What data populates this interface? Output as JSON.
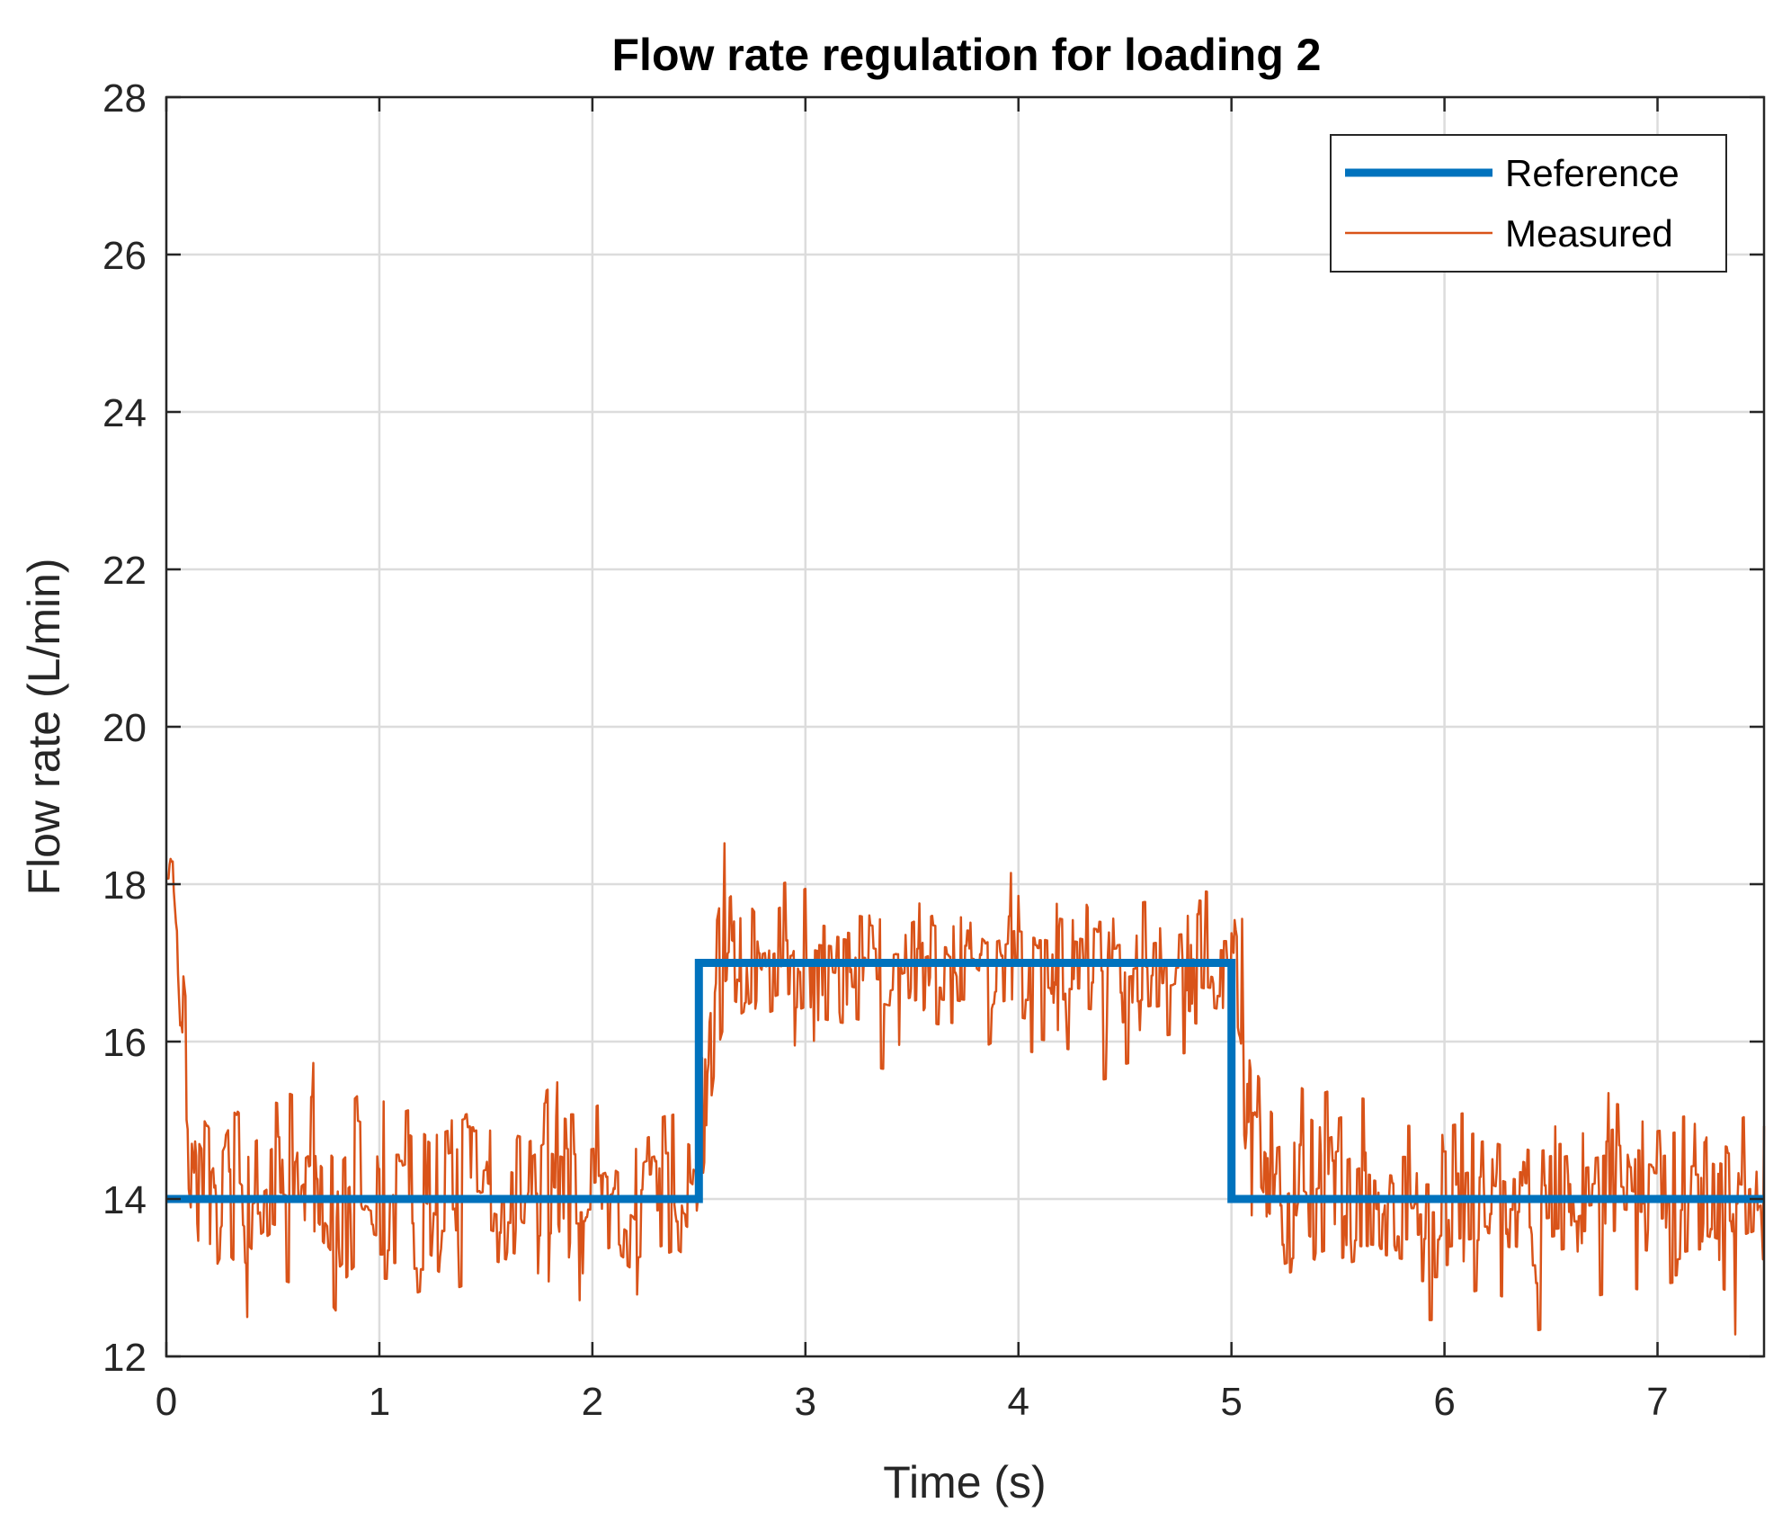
{
  "chart_data": {
    "type": "line",
    "title": "Flow rate regulation for loading 2",
    "xlabel": "Time (s)",
    "ylabel": "Flow rate (L/min)",
    "xlim": [
      0,
      7.5
    ],
    "ylim": [
      12,
      28
    ],
    "xticks": [
      0,
      1,
      2,
      3,
      4,
      5,
      6,
      7
    ],
    "yticks": [
      12,
      14,
      16,
      18,
      20,
      22,
      24,
      26,
      28
    ],
    "grid": true,
    "legend_location": "top-right",
    "series": [
      {
        "name": "Reference",
        "color": "#0072BD",
        "style": "thick-step",
        "x": [
          0,
          2.5,
          2.5,
          5.0,
          5.0,
          7.5
        ],
        "y": [
          14,
          14,
          17,
          17,
          14,
          14
        ]
      },
      {
        "name": "Measured",
        "color": "#D95319",
        "style": "thin-noisy",
        "x": [
          0,
          0.03,
          0.05,
          0.07,
          0.09,
          0.12,
          0.15,
          0.2,
          0.3,
          0.4,
          0.5,
          0.6,
          0.7,
          0.8,
          0.9,
          1.0,
          1.1,
          1.2,
          1.3,
          1.4,
          1.5,
          1.6,
          1.7,
          1.8,
          1.9,
          2.0,
          2.1,
          2.2,
          2.3,
          2.4,
          2.48,
          2.52,
          2.55,
          2.58,
          2.6,
          2.62,
          2.65,
          2.7,
          2.75,
          2.8,
          2.9,
          3.0,
          3.2,
          3.4,
          3.6,
          3.8,
          3.84,
          3.9,
          4.0,
          4.2,
          4.4,
          4.6,
          4.8,
          4.95,
          5.0,
          5.02,
          5.05,
          5.08,
          5.1,
          5.15,
          5.2,
          5.3,
          5.4,
          5.6,
          5.8,
          6.0,
          6.2,
          6.4,
          6.6,
          6.8,
          7.0,
          7.2,
          7.4,
          7.5
        ],
        "y": [
          18.3,
          18.3,
          17.5,
          16.2,
          15.7,
          15.0,
          13.9,
          13.6,
          14.2,
          13.9,
          14.1,
          14.0,
          14.2,
          13.8,
          14.1,
          14.0,
          14.0,
          14.1,
          13.9,
          14.0,
          14.1,
          14.0,
          13.9,
          14.1,
          14.0,
          14.0,
          14.1,
          13.9,
          14.0,
          14.1,
          13.9,
          15.0,
          15.8,
          16.5,
          16.8,
          17.0,
          17.1,
          17.0,
          17.1,
          16.9,
          17.0,
          17.1,
          17.0,
          16.9,
          17.1,
          17.0,
          16.9,
          17.0,
          17.1,
          17.0,
          16.9,
          17.0,
          17.1,
          17.0,
          17.0,
          16.5,
          16.0,
          15.0,
          14.5,
          14.2,
          14.0,
          14.1,
          13.9,
          14.1,
          14.0,
          14.0,
          14.1,
          13.9,
          14.0,
          14.1,
          14.0,
          14.1,
          13.9,
          14.0
        ],
        "noise_amplitude": [
          0.4,
          0.4,
          0.4,
          0.8,
          1.0,
          1.0,
          1.0,
          1.0,
          1.0,
          1.0,
          1.0,
          1.0,
          1.0,
          1.0,
          1.0,
          1.0,
          1.0,
          1.0,
          1.0,
          1.0,
          1.0,
          1.0,
          1.0,
          1.0,
          1.0,
          1.0,
          1.0,
          1.0,
          1.0,
          1.0,
          1.0,
          1.2,
          1.3,
          1.3,
          1.0,
          0.9,
          0.8,
          0.8,
          0.8,
          0.8,
          0.8,
          0.8,
          0.8,
          0.8,
          0.8,
          0.8,
          0.8,
          0.8,
          0.8,
          0.8,
          0.8,
          0.8,
          0.8,
          0.8,
          0.9,
          1.0,
          1.1,
          1.2,
          1.1,
          1.0,
          1.0,
          1.0,
          1.0,
          1.0,
          1.0,
          1.0,
          1.0,
          1.0,
          1.0,
          1.0,
          1.0,
          1.0,
          1.0,
          1.0
        ],
        "noise_seed": 7
      }
    ],
    "range_min_y": 12,
    "range_max_y": 19.2
  }
}
